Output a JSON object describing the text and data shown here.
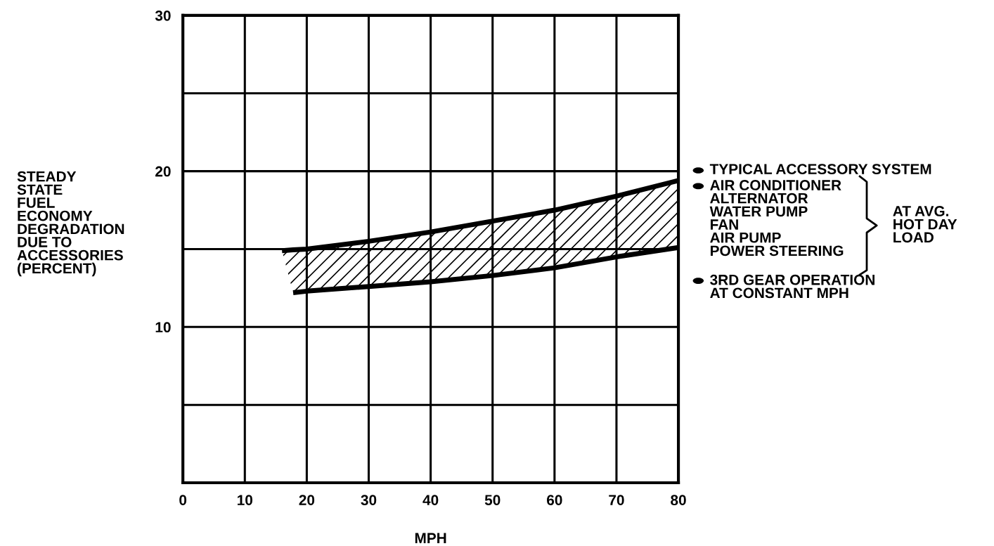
{
  "chart_data": {
    "type": "line",
    "xlabel": "MPH",
    "ylabel": "STEADY\nSTATE\nFUEL\nECONOMY\nDEGRADATION\nDUE TO\nACCESSORIES\n(PERCENT)",
    "xlim": [
      0,
      80
    ],
    "xticks": [
      0,
      10,
      20,
      30,
      40,
      50,
      60,
      70,
      80
    ],
    "ylim": [
      0,
      30
    ],
    "yticks": [
      {
        "value": 5,
        "label": null
      },
      10,
      {
        "value": 15,
        "label": null
      },
      20,
      {
        "value": 25,
        "label": null
      },
      30
    ],
    "grid": true,
    "legend": false,
    "series": [
      {
        "color": "#000000",
        "x": [
          16,
          17.8,
          20,
          30,
          40,
          50,
          60,
          70,
          80
        ],
        "values": [
          14.9,
          14.95,
          15.0,
          15.5,
          16.1,
          16.8,
          17.5,
          18.4,
          19.4
        ],
        "upper": [
          14.9,
          14.95,
          15.0,
          15.5,
          16.1,
          16.8,
          17.5,
          18.4,
          19.4
        ],
        "lower": [
          14.9,
          12.2,
          12.3,
          12.6,
          12.9,
          13.3,
          13.8,
          14.5,
          15.1
        ]
      },
      {
        "type": "line",
        "color": "#000000",
        "x": [
          17.8,
          20,
          30,
          40,
          50,
          60,
          70,
          80
        ],
        "values": [
          12.2,
          12.3,
          12.6,
          12.9,
          13.3,
          13.8,
          14.5,
          15.1
        ]
      }
    ],
    "annotations": [
      "TYPICAL ACCESSORY SYSTEM",
      "AIR CONDITIONER\nALTERNATOR\nWATER PUMP\nFAN\nAIR PUMP\nPOWER STEERING",
      "AT AVG.\nHOT DAY\nLOAD",
      "3RD GEAR OPERATION\nAT CONSTANT MPH"
    ]
  }
}
